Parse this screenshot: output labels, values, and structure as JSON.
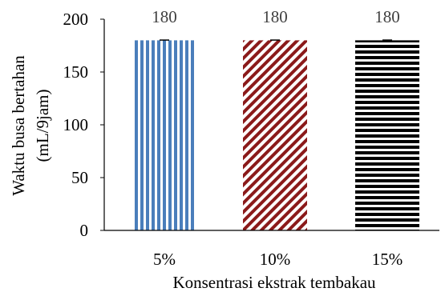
{
  "chart_data": {
    "type": "bar",
    "title": "",
    "categories": [
      "5%",
      "10%",
      "15%"
    ],
    "values": [
      180,
      180,
      180
    ],
    "errors": [
      1,
      1,
      1
    ],
    "data_labels": [
      "180",
      "180",
      "180"
    ],
    "xlabel": "Konsentrasi ekstrak tembakau",
    "ylabel_line1": "Waktu busa bertahan",
    "ylabel_line2": "(mL/9jam)",
    "ylim": [
      0,
      200
    ],
    "yticks": [
      "0",
      "50",
      "100",
      "150",
      "200"
    ],
    "ytick_values": [
      0,
      50,
      100,
      150,
      200
    ],
    "grid": false,
    "legend": "none",
    "bar_fills": [
      {
        "pattern": "vertical-stripes",
        "color": "#4a7ebb"
      },
      {
        "pattern": "diagonal-stripes",
        "color": "#8b1a1a"
      },
      {
        "pattern": "horizontal-stripes",
        "color": "#000000"
      }
    ],
    "axis_color": "#000000",
    "label_color": "#404040"
  }
}
